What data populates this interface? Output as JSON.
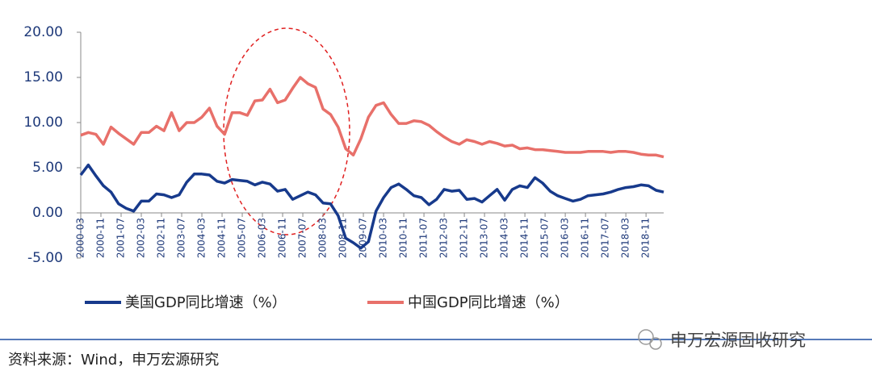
{
  "chart_data": {
    "type": "line",
    "x": [
      "2000-03",
      "2000-06",
      "2000-09",
      "2000-12",
      "2001-03",
      "2001-06",
      "2001-09",
      "2001-12",
      "2002-03",
      "2002-06",
      "2002-09",
      "2002-12",
      "2003-03",
      "2003-06",
      "2003-09",
      "2003-12",
      "2004-03",
      "2004-06",
      "2004-09",
      "2004-12",
      "2005-03",
      "2005-06",
      "2005-09",
      "2005-12",
      "2006-03",
      "2006-06",
      "2006-09",
      "2006-12",
      "2007-03",
      "2007-06",
      "2007-09",
      "2007-12",
      "2008-03",
      "2008-06",
      "2008-09",
      "2008-12",
      "2009-03",
      "2009-06",
      "2009-09",
      "2009-12",
      "2010-03",
      "2010-06",
      "2010-09",
      "2010-12",
      "2011-03",
      "2011-06",
      "2011-09",
      "2011-12",
      "2012-03",
      "2012-06",
      "2012-09",
      "2012-12",
      "2013-03",
      "2013-06",
      "2013-09",
      "2013-12",
      "2014-03",
      "2014-06",
      "2014-09",
      "2014-12",
      "2015-03",
      "2015-06",
      "2015-09",
      "2015-12",
      "2016-03",
      "2016-06",
      "2016-09",
      "2016-12",
      "2017-03",
      "2017-06",
      "2017-09",
      "2017-12",
      "2018-03",
      "2018-06",
      "2018-09",
      "2018-12",
      "2019-03",
      "2019-06"
    ],
    "xlim": [
      "2000-03",
      "2019-06"
    ],
    "xticks": [
      "2000-03",
      "2000-11",
      "2001-07",
      "2002-03",
      "2002-11",
      "2003-07",
      "2004-03",
      "2004-11",
      "2005-07",
      "2006-03",
      "2006-11",
      "2007-07",
      "2008-03",
      "2008-11",
      "2009-07",
      "2010-03",
      "2010-11",
      "2011-07",
      "2012-03",
      "2012-11",
      "2013-07",
      "2014-03",
      "2014-11",
      "2015-07",
      "2016-03",
      "2016-11",
      "2017-07",
      "2018-03",
      "2018-11"
    ],
    "ylim": [
      -5,
      20
    ],
    "yticks": [
      {
        "value": -5,
        "label": "-5.00"
      },
      {
        "value": 0,
        "label": "0.00"
      },
      {
        "value": 5,
        "label": "5.00"
      },
      {
        "value": 10,
        "label": "10.00"
      },
      {
        "value": 15,
        "label": "15.00"
      },
      {
        "value": 20,
        "label": "20.00"
      }
    ],
    "series": [
      {
        "name": "美国GDP同比增速（%）",
        "color": "#173a8c",
        "values": [
          4.2,
          5.3,
          4.1,
          3.0,
          2.3,
          1.0,
          0.5,
          0.2,
          1.3,
          1.3,
          2.1,
          2.0,
          1.7,
          2.0,
          3.4,
          4.3,
          4.3,
          4.2,
          3.5,
          3.3,
          3.7,
          3.6,
          3.5,
          3.1,
          3.4,
          3.2,
          2.4,
          2.6,
          1.5,
          1.9,
          2.3,
          2.0,
          1.1,
          1.0,
          -0.3,
          -2.8,
          -3.3,
          -3.9,
          -3.2,
          0.2,
          1.7,
          2.8,
          3.2,
          2.6,
          1.9,
          1.7,
          0.9,
          1.5,
          2.6,
          2.4,
          2.5,
          1.5,
          1.6,
          1.2,
          1.9,
          2.6,
          1.4,
          2.6,
          3.0,
          2.8,
          3.9,
          3.3,
          2.4,
          1.9,
          1.6,
          1.3,
          1.5,
          1.9,
          2.0,
          2.1,
          2.3,
          2.6,
          2.8,
          2.9,
          3.1,
          3.0,
          2.5,
          2.3
        ]
      },
      {
        "name": "中国GDP同比增速（%）",
        "color": "#e8706a",
        "values": [
          8.6,
          8.9,
          8.7,
          7.6,
          9.5,
          8.8,
          8.2,
          7.6,
          8.9,
          8.9,
          9.6,
          9.1,
          11.1,
          9.1,
          10.0,
          10.0,
          10.6,
          11.6,
          9.6,
          8.7,
          11.1,
          11.1,
          10.8,
          12.4,
          12.5,
          13.7,
          12.2,
          12.5,
          13.8,
          15.0,
          14.3,
          13.9,
          11.5,
          10.9,
          9.5,
          7.1,
          6.4,
          8.2,
          10.6,
          11.9,
          12.2,
          10.9,
          9.9,
          9.9,
          10.2,
          10.1,
          9.7,
          9.0,
          8.4,
          7.9,
          7.6,
          8.1,
          7.9,
          7.6,
          7.9,
          7.7,
          7.4,
          7.5,
          7.1,
          7.2,
          7.0,
          7.0,
          6.9,
          6.8,
          6.7,
          6.7,
          6.7,
          6.8,
          6.8,
          6.8,
          6.7,
          6.8,
          6.8,
          6.7,
          6.5,
          6.4,
          6.4,
          6.2
        ]
      }
    ]
  },
  "source": "资料来源：Wind，申万宏源研究",
  "watermark": "申万宏源固收研究"
}
